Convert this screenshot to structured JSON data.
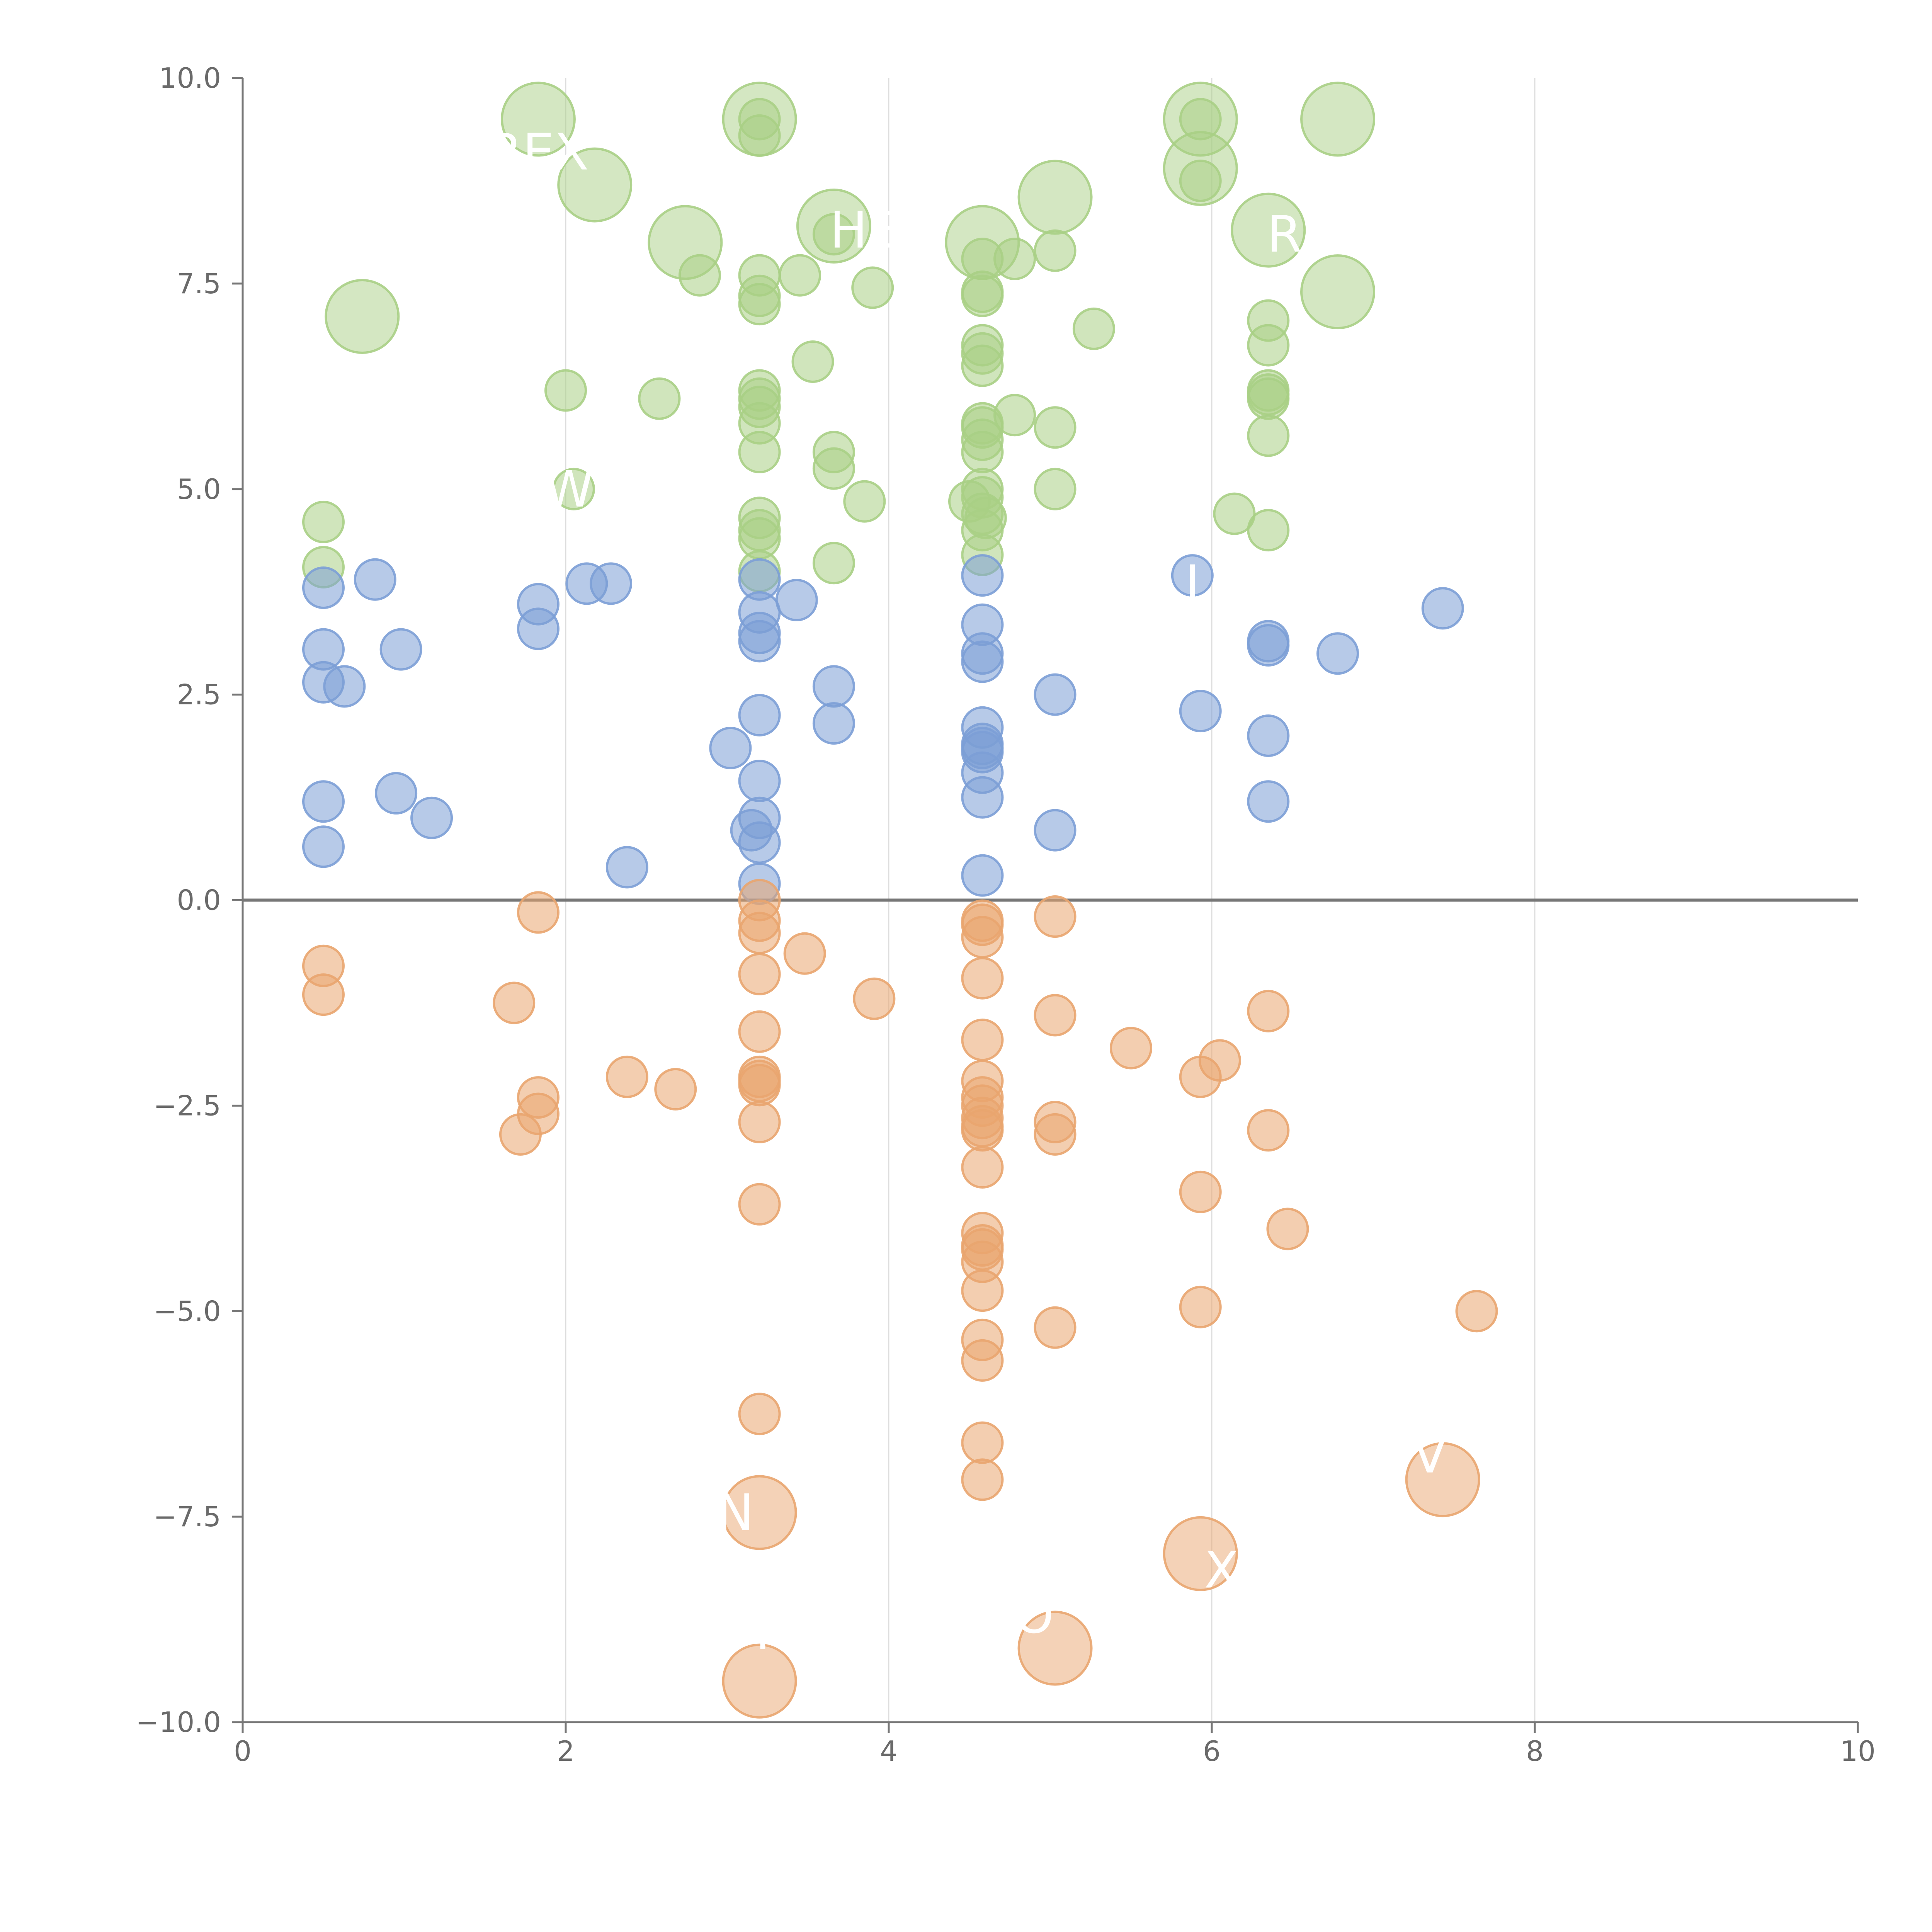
{
  "colors": {
    "high": "#a9cf85",
    "mid": "#7c9ed6",
    "low": "#e9a56f",
    "axis": "#777777",
    "grid": "#dddddd",
    "text": "#6a6a6a",
    "label_text": "#ffffff"
  },
  "chart_data": {
    "type": "scatter",
    "title": "",
    "xlabel": "",
    "ylabel": "",
    "xlim": [
      0,
      10
    ],
    "ylim": [
      -10,
      10
    ],
    "x_ticks": [
      0,
      2,
      4,
      6,
      8,
      10
    ],
    "x_tick_labels": [
      "0",
      "2",
      "4",
      "6",
      "8",
      "10"
    ],
    "y_ticks": [
      10,
      7.5,
      5,
      2.5,
      0,
      -2.5,
      -5,
      -7.5,
      -10
    ],
    "y_tick_labels": [
      "10.0",
      "7.5",
      "5.0",
      "2.5",
      "0.0",
      "−2.5",
      "−5.0",
      "−7.5",
      "−10.0"
    ],
    "vertical_grid_at": [
      2,
      4,
      6,
      8
    ],
    "reference_line_y": 0,
    "series": [
      {
        "name": "high",
        "color_key": "high",
        "points": [
          [
            1.83,
            9.5,
            "L"
          ],
          [
            3.2,
            9.5,
            "L"
          ],
          [
            5.93,
            9.5,
            "L"
          ],
          [
            6.78,
            9.5,
            "L"
          ],
          [
            2.18,
            8.7,
            "L"
          ],
          [
            5.93,
            8.9,
            "L"
          ],
          [
            5.03,
            8.55,
            "L"
          ],
          [
            3.66,
            8.2,
            "L"
          ],
          [
            6.35,
            8.15,
            "L"
          ],
          [
            2.74,
            8.0,
            "L"
          ],
          [
            4.58,
            8.0,
            "L"
          ],
          [
            0.74,
            7.1,
            "L"
          ],
          [
            6.78,
            7.4,
            "L"
          ],
          [
            3.2,
            9.3
          ],
          [
            5.93,
            9.5
          ],
          [
            3.2,
            9.5
          ],
          [
            5.93,
            8.75
          ],
          [
            3.66,
            8.1
          ],
          [
            4.58,
            7.8
          ],
          [
            4.78,
            7.8
          ],
          [
            5.03,
            7.9
          ],
          [
            2.83,
            7.6
          ],
          [
            3.2,
            7.6
          ],
          [
            3.45,
            7.6
          ],
          [
            3.9,
            7.45
          ],
          [
            3.2,
            7.35
          ],
          [
            3.2,
            7.25
          ],
          [
            4.58,
            7.4
          ],
          [
            4.58,
            7.35
          ],
          [
            5.27,
            6.95
          ],
          [
            6.35,
            7.05
          ],
          [
            4.58,
            6.75
          ],
          [
            4.58,
            6.65
          ],
          [
            6.35,
            6.75
          ],
          [
            3.53,
            6.55
          ],
          [
            4.58,
            6.5
          ],
          [
            2.0,
            6.2
          ],
          [
            2.58,
            6.1
          ],
          [
            3.2,
            6.2
          ],
          [
            3.2,
            6.1
          ],
          [
            3.2,
            6.0
          ],
          [
            6.35,
            6.2
          ],
          [
            6.35,
            6.15
          ],
          [
            6.35,
            6.1
          ],
          [
            4.58,
            5.8
          ],
          [
            4.58,
            5.75
          ],
          [
            4.78,
            5.9
          ],
          [
            3.2,
            5.8
          ],
          [
            5.03,
            5.75
          ],
          [
            6.35,
            5.65
          ],
          [
            4.58,
            5.6
          ],
          [
            3.2,
            5.45
          ],
          [
            3.66,
            5.45
          ],
          [
            4.58,
            5.45
          ],
          [
            3.66,
            5.25
          ],
          [
            2.05,
            5.0
          ],
          [
            5.03,
            5.0
          ],
          [
            4.58,
            5.0
          ],
          [
            4.58,
            4.9
          ],
          [
            4.5,
            4.85
          ],
          [
            3.85,
            4.85
          ],
          [
            6.14,
            4.7
          ],
          [
            3.2,
            4.65
          ],
          [
            4.58,
            4.7
          ],
          [
            4.6,
            4.65
          ],
          [
            0.5,
            4.6
          ],
          [
            3.2,
            4.5
          ],
          [
            6.35,
            4.5
          ],
          [
            4.58,
            4.5
          ],
          [
            3.2,
            4.4
          ],
          [
            4.58,
            4.2
          ],
          [
            3.66,
            4.1
          ],
          [
            0.5,
            4.05
          ],
          [
            3.2,
            4.0
          ]
        ]
      },
      {
        "name": "mid",
        "color_key": "mid",
        "points": [
          [
            5.88,
            3.95
          ],
          [
            3.2,
            3.9
          ],
          [
            4.58,
            3.95
          ],
          [
            0.82,
            3.9
          ],
          [
            2.13,
            3.85
          ],
          [
            2.28,
            3.85
          ],
          [
            0.5,
            3.8
          ],
          [
            1.83,
            3.6
          ],
          [
            3.43,
            3.65
          ],
          [
            7.43,
            3.55
          ],
          [
            3.2,
            3.5
          ],
          [
            4.58,
            3.35
          ],
          [
            1.83,
            3.3
          ],
          [
            3.2,
            3.25
          ],
          [
            3.2,
            3.15
          ],
          [
            6.35,
            3.15
          ],
          [
            6.35,
            3.1
          ],
          [
            0.5,
            3.05
          ],
          [
            0.98,
            3.05
          ],
          [
            6.78,
            3.0
          ],
          [
            4.58,
            3.0
          ],
          [
            4.58,
            2.9
          ],
          [
            0.5,
            2.65
          ],
          [
            0.63,
            2.6
          ],
          [
            3.66,
            2.6
          ],
          [
            5.03,
            2.5
          ],
          [
            5.93,
            2.3
          ],
          [
            3.2,
            2.25
          ],
          [
            3.66,
            2.15
          ],
          [
            4.58,
            2.1
          ],
          [
            6.35,
            2.0
          ],
          [
            4.58,
            1.9
          ],
          [
            4.58,
            1.85
          ],
          [
            3.02,
            1.85
          ],
          [
            4.58,
            1.8
          ],
          [
            4.58,
            1.55
          ],
          [
            3.2,
            1.45
          ],
          [
            0.95,
            1.3
          ],
          [
            4.58,
            1.25
          ],
          [
            0.5,
            1.2
          ],
          [
            6.35,
            1.2
          ],
          [
            1.17,
            1.0
          ],
          [
            3.2,
            1.0
          ],
          [
            5.03,
            0.85
          ],
          [
            3.15,
            0.85
          ],
          [
            3.2,
            0.7
          ],
          [
            0.5,
            0.65
          ],
          [
            2.38,
            0.4
          ],
          [
            4.58,
            0.3
          ],
          [
            3.2,
            0.2
          ]
        ]
      },
      {
        "name": "low",
        "color_key": "low",
        "points": [
          [
            3.2,
            0.0
          ],
          [
            1.83,
            -0.15
          ],
          [
            5.03,
            -0.2
          ],
          [
            3.2,
            -0.25
          ],
          [
            4.58,
            -0.25
          ],
          [
            4.58,
            -0.3
          ],
          [
            3.2,
            -0.4
          ],
          [
            4.58,
            -0.45
          ],
          [
            3.48,
            -0.65
          ],
          [
            0.5,
            -0.8
          ],
          [
            3.2,
            -0.9
          ],
          [
            4.58,
            -0.95
          ],
          [
            0.5,
            -1.15
          ],
          [
            3.91,
            -1.2
          ],
          [
            1.68,
            -1.25
          ],
          [
            5.03,
            -1.4
          ],
          [
            6.35,
            -1.35
          ],
          [
            3.2,
            -1.6
          ],
          [
            4.58,
            -1.7
          ],
          [
            5.5,
            -1.8
          ],
          [
            6.05,
            -1.95
          ],
          [
            5.93,
            -2.15
          ],
          [
            3.2,
            -2.15
          ],
          [
            2.38,
            -2.15
          ],
          [
            3.2,
            -2.25
          ],
          [
            3.2,
            -2.2
          ],
          [
            4.58,
            -2.2
          ],
          [
            2.68,
            -2.3
          ],
          [
            1.83,
            -2.4
          ],
          [
            4.58,
            -2.4
          ],
          [
            4.58,
            -2.5
          ],
          [
            1.83,
            -2.6
          ],
          [
            4.58,
            -2.65
          ],
          [
            5.03,
            -2.7
          ],
          [
            4.58,
            -2.75
          ],
          [
            3.2,
            -2.7
          ],
          [
            4.58,
            -2.8
          ],
          [
            6.35,
            -2.8
          ],
          [
            1.72,
            -2.85
          ],
          [
            5.03,
            -2.85
          ],
          [
            4.58,
            -3.25
          ],
          [
            5.93,
            -3.55
          ],
          [
            3.2,
            -3.7
          ],
          [
            6.47,
            -4.0
          ],
          [
            4.58,
            -4.05
          ],
          [
            4.58,
            -4.2
          ],
          [
            4.58,
            -4.25
          ],
          [
            4.58,
            -4.4
          ],
          [
            4.58,
            -4.75
          ],
          [
            5.93,
            -4.95
          ],
          [
            7.64,
            -5.0
          ],
          [
            5.03,
            -5.2
          ],
          [
            4.58,
            -5.35
          ],
          [
            4.58,
            -5.6
          ],
          [
            3.2,
            -6.25
          ],
          [
            4.58,
            -6.6
          ],
          [
            4.58,
            -7.05
          ],
          [
            7.43,
            -7.05,
            "L"
          ],
          [
            3.2,
            -7.45,
            "L"
          ],
          [
            5.93,
            -7.95,
            "L"
          ],
          [
            5.03,
            -9.1,
            "L"
          ],
          [
            3.2,
            -9.5,
            "L"
          ]
        ]
      }
    ],
    "annotations": [
      {
        "text": "REX",
        "x": 1.83,
        "y": 9.1
      },
      {
        "text": "HE",
        "x": 3.85,
        "y": 8.15
      },
      {
        "text": "RA",
        "x": 6.55,
        "y": 8.1
      },
      {
        "text": "W",
        "x": 2.02,
        "y": 5.0
      },
      {
        "text": "J",
        "x": 5.88,
        "y": 3.85
      },
      {
        "text": "N",
        "x": 3.05,
        "y": -7.45
      },
      {
        "text": "V",
        "x": 7.35,
        "y": -6.75
      },
      {
        "text": "X",
        "x": 6.06,
        "y": -8.15
      },
      {
        "text": "O",
        "x": 4.9,
        "y": -8.7
      },
      {
        "text": "T",
        "x": 3.22,
        "y": -8.9
      }
    ]
  }
}
